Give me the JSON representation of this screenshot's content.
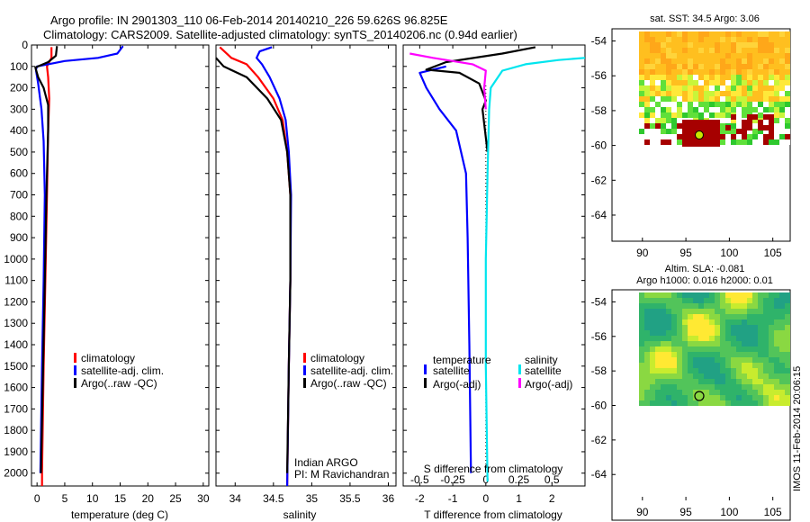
{
  "title_line1": "Argo profile: IN 2901303_110 06-Feb-2014 20140210_226 59.626S 96.825E",
  "title_line2": "Climatology: CARS2009. Satellite-adjusted climatology: synTS_20140206.nc (0.94d earlier)",
  "watermark": "IMOS 11-Feb-2014 20:06:15",
  "colors": {
    "climatology": "#ff0000",
    "satellite": "#0000ff",
    "argo": "#000000",
    "sat_s": "#00e5ee",
    "argo_s": "#ff00ff"
  },
  "depth_axis": {
    "ticks": [
      0,
      100,
      200,
      300,
      400,
      500,
      600,
      700,
      800,
      900,
      1000,
      1100,
      1200,
      1300,
      1400,
      1500,
      1600,
      1700,
      1800,
      1900,
      2000
    ],
    "range": [
      0,
      2060
    ]
  },
  "chart_data": [
    {
      "type": "line",
      "name": "temperature",
      "xlabel": "temperature (deg C)",
      "xlim": [
        -1,
        31
      ],
      "xticks": [
        0,
        5,
        10,
        15,
        20,
        25,
        30
      ],
      "legend": [
        "climatology",
        "satellite-adj. clim.",
        "Argo(..raw -QC)"
      ],
      "series": [
        {
          "name": "climatology",
          "color": "#ff0000",
          "points": [
            [
              2.6,
              10
            ],
            [
              2.6,
              60
            ],
            [
              1.8,
              100
            ],
            [
              2.0,
              150
            ],
            [
              2.2,
              250
            ],
            [
              2.0,
              400
            ],
            [
              1.8,
              700
            ],
            [
              1.5,
              1100
            ],
            [
              1.2,
              1500
            ],
            [
              0.9,
              2000
            ],
            [
              0.9,
              2060
            ]
          ]
        },
        {
          "name": "satellite-adj. clim.",
          "color": "#0000ff",
          "points": [
            [
              15.5,
              5
            ],
            [
              14.5,
              40
            ],
            [
              11,
              60
            ],
            [
              5,
              75
            ],
            [
              0,
              100
            ],
            [
              -0.2,
              115
            ],
            [
              0.2,
              180
            ],
            [
              0.8,
              300
            ],
            [
              1.2,
              450
            ],
            [
              1.4,
              700
            ],
            [
              1.2,
              1100
            ],
            [
              0.9,
              1500
            ],
            [
              0.6,
              2000
            ]
          ]
        },
        {
          "name": "Argo(..raw -QC)",
          "color": "#000000",
          "points": [
            [
              3.6,
              5
            ],
            [
              3.4,
              50
            ],
            [
              2.0,
              80
            ],
            [
              -0.3,
              105
            ],
            [
              0.2,
              150
            ],
            [
              1.2,
              200
            ],
            [
              2.0,
              280
            ],
            [
              2.0,
              400
            ],
            [
              1.7,
              700
            ],
            [
              1.4,
              1100
            ],
            [
              1.1,
              1500
            ],
            [
              0.7,
              2000
            ]
          ]
        }
      ]
    },
    {
      "type": "line",
      "name": "salinity",
      "xlabel": "salinity",
      "xlim": [
        33.75,
        36.1
      ],
      "xticks": [
        34,
        34.5,
        35,
        35.5,
        36
      ],
      "legend": [
        "climatology",
        "satellite-adj. clim.",
        "Argo(..raw -QC)"
      ],
      "annotation": [
        "Indian ARGO",
        "PI: M Ravichandran"
      ],
      "series": [
        {
          "name": "climatology",
          "color": "#ff0000",
          "points": [
            [
              33.8,
              10
            ],
            [
              33.95,
              60
            ],
            [
              34.15,
              90
            ],
            [
              34.3,
              150
            ],
            [
              34.5,
              250
            ],
            [
              34.62,
              350
            ],
            [
              34.68,
              500
            ],
            [
              34.72,
              700
            ],
            [
              34.72,
              1100
            ],
            [
              34.7,
              1500
            ],
            [
              34.68,
              2060
            ]
          ]
        },
        {
          "name": "satellite-adj. clim.",
          "color": "#0000ff",
          "points": [
            [
              34.48,
              10
            ],
            [
              34.32,
              30
            ],
            [
              34.28,
              60
            ],
            [
              34.35,
              90
            ],
            [
              34.45,
              150
            ],
            [
              34.58,
              250
            ],
            [
              34.66,
              350
            ],
            [
              34.7,
              500
            ],
            [
              34.73,
              700
            ],
            [
              34.72,
              1100
            ],
            [
              34.7,
              1500
            ],
            [
              34.68,
              2060
            ]
          ]
        },
        {
          "name": "Argo(..raw -QC)",
          "color": "#000000",
          "points": [
            [
              33.75,
              60
            ],
            [
              33.85,
              100
            ],
            [
              34.15,
              150
            ],
            [
              34.42,
              250
            ],
            [
              34.6,
              350
            ],
            [
              34.68,
              500
            ],
            [
              34.72,
              700
            ],
            [
              34.72,
              1100
            ],
            [
              34.7,
              1500
            ],
            [
              34.68,
              2000
            ]
          ]
        }
      ]
    },
    {
      "type": "line",
      "name": "difference",
      "xlabel": "T difference from climatology",
      "xlabel_top": "S difference from climatology",
      "xlim": [
        -2.5,
        3.0
      ],
      "xticks": [
        -2,
        -1,
        0,
        1,
        2
      ],
      "xticks_top": [
        {
          "label": "-0.5",
          "v": -0.5
        },
        {
          "label": "-0.25",
          "v": -0.25
        },
        {
          "label": "0",
          "v": 0
        },
        {
          "label": "0.25",
          "v": 0.25
        },
        {
          "label": "0.5",
          "v": 0.5
        }
      ],
      "s_scale": 4,
      "legend_temperature": {
        "title": "temperature",
        "items": [
          "satellite",
          "Argo(-adj)"
        ]
      },
      "legend_salinity": {
        "title": "salinity",
        "items": [
          "satellite",
          "Argo(-adj)"
        ]
      },
      "series": [
        {
          "name": "T satellite",
          "color": "#0000ff",
          "points": [
            [
              -1.2,
              100
            ],
            [
              -2.0,
              130
            ],
            [
              -1.8,
              200
            ],
            [
              -1.4,
              300
            ],
            [
              -0.9,
              400
            ],
            [
              -0.6,
              600
            ],
            [
              -0.55,
              900
            ],
            [
              -0.5,
              1400
            ],
            [
              -0.45,
              2000
            ]
          ]
        },
        {
          "name": "T Argo(-adj)",
          "color": "#000000",
          "points": [
            [
              1.5,
              10
            ],
            [
              0.5,
              40
            ],
            [
              -1.2,
              80
            ],
            [
              -1.8,
              115
            ],
            [
              -0.8,
              130
            ],
            [
              -0.2,
              180
            ],
            [
              0.0,
              260
            ],
            [
              -0.1,
              300
            ],
            [
              0.05,
              500
            ]
          ]
        },
        {
          "name": "S satellite",
          "color": "#00e5ee",
          "points": [
            [
              3.0,
              60
            ],
            [
              2.2,
              70
            ],
            [
              1.2,
              90
            ],
            [
              0.5,
              120
            ],
            [
              0.15,
              200
            ],
            [
              0.1,
              300
            ],
            [
              0.05,
              600
            ],
            [
              0.0,
              1000
            ],
            [
              0.0,
              1500
            ],
            [
              0.05,
              2040
            ]
          ]
        },
        {
          "name": "S Argo(-adj)",
          "color": "#ff00ff",
          "points": [
            [
              -2.3,
              40
            ],
            [
              -1.6,
              60
            ],
            [
              -0.4,
              90
            ],
            [
              0.0,
              120
            ],
            [
              -0.05,
              200
            ],
            [
              0.0,
              300
            ]
          ]
        }
      ]
    }
  ],
  "maps": [
    {
      "name": "sst-map",
      "title": "sat. SST: 34.5 Argo: 3.06",
      "ylabels": [
        "-54",
        "-56",
        "-58",
        "-60",
        "-62",
        "-64"
      ],
      "xlabels": [
        "90",
        "95",
        "100",
        "105"
      ]
    },
    {
      "name": "sla-map",
      "title_line1": "Altim. SLA: -0.081",
      "title_line2": "Argo h1000: 0.016 h2000: 0.01",
      "ylabels": [
        "-54",
        "-56",
        "-58",
        "-60",
        "-62",
        "-64"
      ],
      "xlabels": [
        "90",
        "95",
        "100",
        "105"
      ]
    }
  ]
}
